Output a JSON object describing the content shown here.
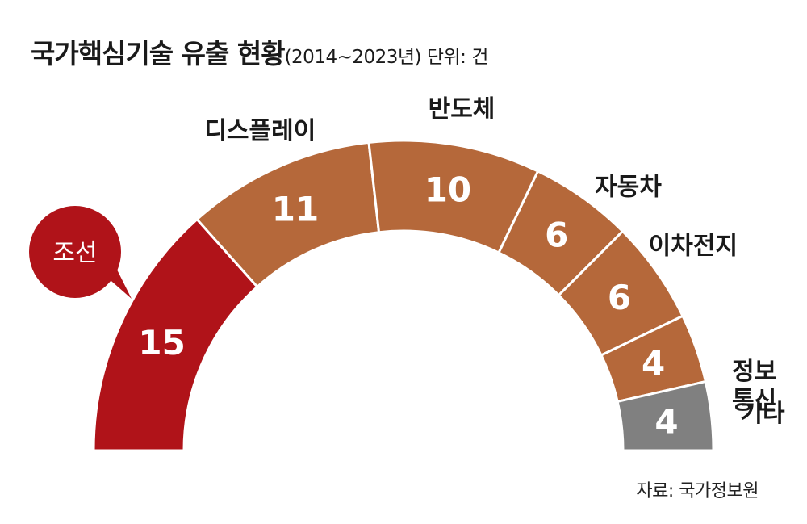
{
  "title": "국가핵심기술 유출 현황",
  "subtitle": "(2014~2023년) 단위: 건",
  "source": "자료: 국가정보원",
  "colors": {
    "highlight": "#b01319",
    "default": "#b5683a",
    "other": "#808080",
    "separator": "#ffffff"
  },
  "chart_data": {
    "type": "pie",
    "shape": "semicircle-donut",
    "unit": "건",
    "period": "2014~2023년",
    "categories": [
      "조선",
      "디스플레이",
      "반도체",
      "자동차",
      "이차전지",
      "정보통신",
      "기타"
    ],
    "category_labels": [
      [
        "조선"
      ],
      [
        "디스플레이"
      ],
      [
        "반도체"
      ],
      [
        "자동차"
      ],
      [
        "이차전지"
      ],
      [
        "정보",
        "통신"
      ],
      [
        "기타"
      ]
    ],
    "values": [
      15,
      11,
      10,
      6,
      6,
      4,
      4
    ],
    "highlight": "조선"
  }
}
